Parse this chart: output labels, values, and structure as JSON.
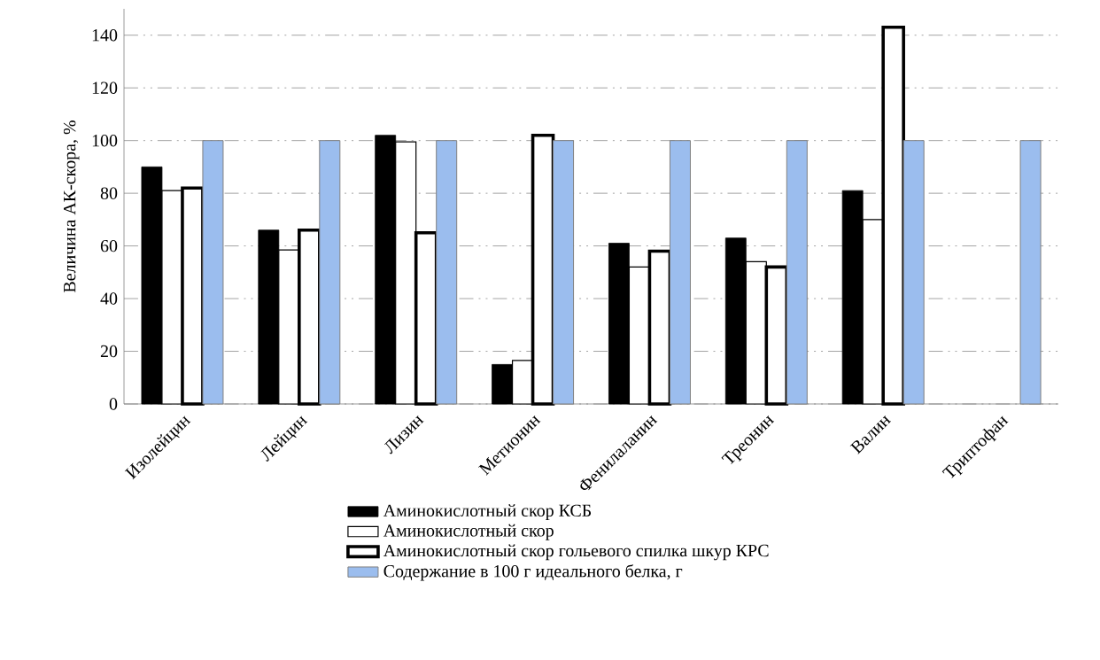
{
  "chart_data": {
    "type": "bar",
    "ylabel": "Величина АК-скора, %",
    "categories": [
      "Изолейцин",
      "Лейцин",
      "Лизин",
      "Метионин",
      "Фенилаланин",
      "Треонин",
      "Валин",
      "Триптофан"
    ],
    "series": [
      {
        "name": "Аминокислотный скор КСБ",
        "color": "#000000",
        "values": [
          90,
          66,
          102,
          15,
          61,
          63,
          81,
          null
        ]
      },
      {
        "name": "Аминокислотный скор",
        "color": "#ffffff",
        "values": [
          81,
          58.5,
          99.5,
          16.5,
          52,
          54,
          70,
          null
        ]
      },
      {
        "name": "Аминокислотный скор гольевого спилка шкур КРС",
        "color": "#ffffff",
        "values": [
          82,
          66,
          65,
          102,
          58,
          52,
          143,
          null
        ]
      },
      {
        "name": "Содержание в 100 г идеального белка, г",
        "color": "#9bbdee",
        "values": [
          100,
          100,
          100,
          100,
          100,
          100,
          100,
          100
        ]
      }
    ],
    "ylim": [
      0,
      150
    ],
    "yticks": [
      0,
      20,
      40,
      60,
      80,
      100,
      120,
      140
    ],
    "grid": "y",
    "legend": "bottom"
  }
}
